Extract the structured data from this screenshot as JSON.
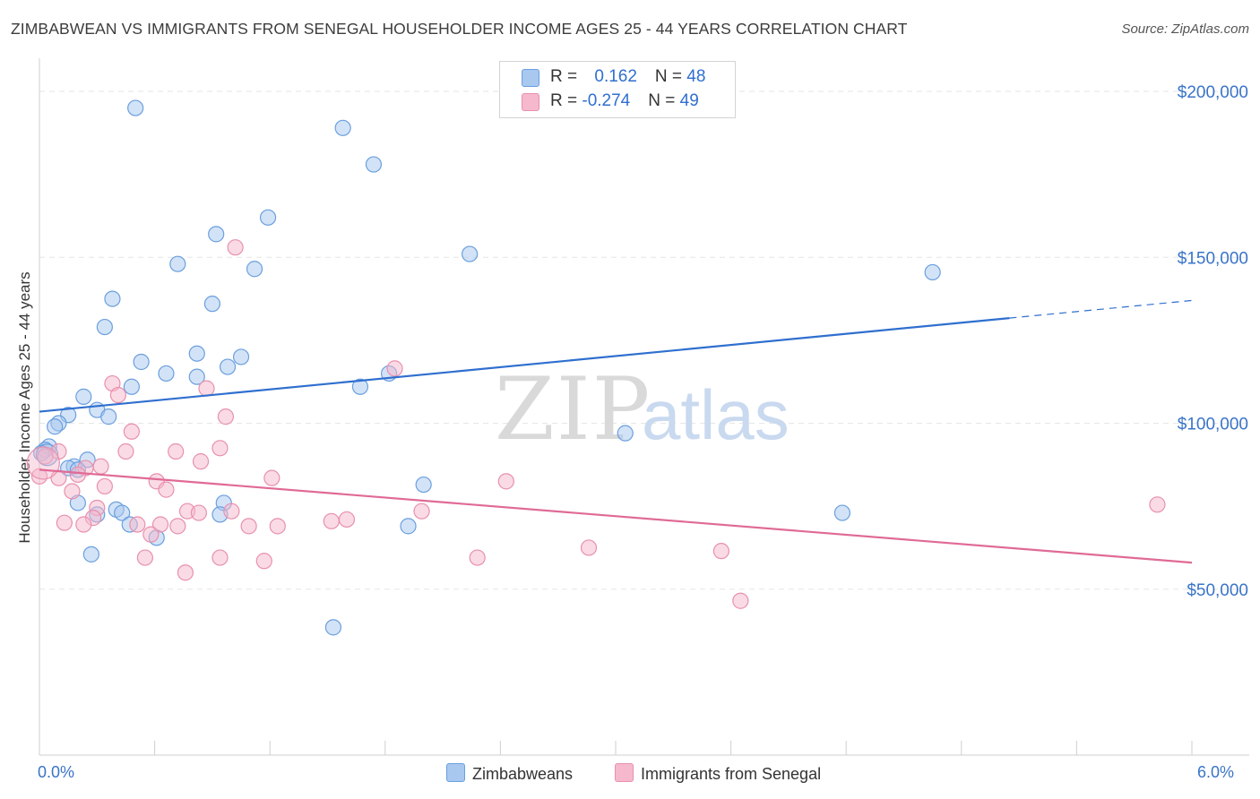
{
  "title": "ZIMBABWEAN VS IMMIGRANTS FROM SENEGAL HOUSEHOLDER INCOME AGES 25 - 44 YEARS CORRELATION CHART",
  "source": "Source: ZipAtlas.com",
  "watermark": {
    "zip": "ZIP",
    "atlas": "atlas"
  },
  "legend_top": [
    {
      "r_label": "R = ",
      "r_value": "0.162",
      "n_label": "N = ",
      "n_value": "48"
    },
    {
      "r_label": "R = ",
      "r_value": "-0.274",
      "n_label": "N = ",
      "n_value": "49"
    }
  ],
  "legend_bottom": [
    "Zimbabweans",
    "Immigrants from Senegal"
  ],
  "colors": {
    "blue_fill": "#a8c8f0",
    "blue_stroke": "#6a9fde",
    "blue_line": "#2f6fcf",
    "pink_fill": "#f5b8cc",
    "pink_stroke": "#e890ad",
    "pink_line": "#e06a96",
    "grid": "#e6e6e6",
    "tick_label": "#3a74c8"
  },
  "chart_data": {
    "type": "scatter",
    "xlabel": "",
    "ylabel": "Householder Income Ages 25 - 44 years",
    "xlim": [
      0,
      6
    ],
    "ylim": [
      0,
      210000
    ],
    "x_tick_labels": [
      "0.0%",
      "6.0%"
    ],
    "y_ticks": [
      50000,
      100000,
      150000,
      200000
    ],
    "y_tick_labels": [
      "$50,000",
      "$100,000",
      "$150,000",
      "$200,000"
    ],
    "grid": true,
    "legend_placement": "top-center",
    "series": [
      {
        "name": "Zimbabweans",
        "r": 0.162,
        "n": 48,
        "trend": {
          "x0": 0,
          "y0": 103500,
          "x1": 6,
          "y1": 137000,
          "solid_until": 5.05
        },
        "points": [
          [
            0.5,
            195000
          ],
          [
            1.58,
            189000
          ],
          [
            1.74,
            178000
          ],
          [
            1.19,
            162000
          ],
          [
            0.92,
            157000
          ],
          [
            2.24,
            151000
          ],
          [
            0.72,
            148000
          ],
          [
            1.12,
            146500
          ],
          [
            4.65,
            145500
          ],
          [
            0.38,
            137500
          ],
          [
            0.9,
            136000
          ],
          [
            0.34,
            129000
          ],
          [
            0.53,
            118500
          ],
          [
            0.82,
            121000
          ],
          [
            1.05,
            120000
          ],
          [
            0.66,
            115000
          ],
          [
            0.98,
            117000
          ],
          [
            0.82,
            114000
          ],
          [
            1.82,
            115000
          ],
          [
            1.67,
            111000
          ],
          [
            0.48,
            111000
          ],
          [
            0.23,
            108000
          ],
          [
            0.3,
            104000
          ],
          [
            0.36,
            102000
          ],
          [
            0.15,
            102500
          ],
          [
            0.1,
            100000
          ],
          [
            0.08,
            99000
          ],
          [
            3.05,
            97000
          ],
          [
            0.05,
            93000
          ],
          [
            0.03,
            92000
          ],
          [
            0.25,
            89000
          ],
          [
            0.18,
            87000
          ],
          [
            0.15,
            86500
          ],
          [
            0.2,
            86000
          ],
          [
            2.0,
            81500
          ],
          [
            0.2,
            76000
          ],
          [
            0.96,
            76000
          ],
          [
            0.4,
            74000
          ],
          [
            0.43,
            73000
          ],
          [
            0.3,
            72500
          ],
          [
            0.94,
            72500
          ],
          [
            4.18,
            73000
          ],
          [
            0.47,
            69500
          ],
          [
            1.92,
            69000
          ],
          [
            0.61,
            65500
          ],
          [
            0.27,
            60500
          ],
          [
            1.53,
            38500
          ],
          [
            0.01,
            91000
          ]
        ]
      },
      {
        "name": "Immigrants from Senegal",
        "r": -0.274,
        "n": 49,
        "trend": {
          "x0": 0,
          "y0": 86000,
          "x1": 6,
          "y1": 58000
        },
        "points": [
          [
            1.02,
            153000
          ],
          [
            1.85,
            116500
          ],
          [
            0.38,
            112000
          ],
          [
            0.87,
            110500
          ],
          [
            0.41,
            108500
          ],
          [
            0.48,
            97500
          ],
          [
            0.97,
            102000
          ],
          [
            0.94,
            92500
          ],
          [
            0.71,
            91500
          ],
          [
            0.45,
            91500
          ],
          [
            0.1,
            91500
          ],
          [
            0.03,
            90000
          ],
          [
            0.84,
            88500
          ],
          [
            0.24,
            86500
          ],
          [
            0.32,
            87000
          ],
          [
            0.2,
            84500
          ],
          [
            0.1,
            83500
          ],
          [
            2.43,
            82500
          ],
          [
            1.21,
            83500
          ],
          [
            0.61,
            82500
          ],
          [
            0.34,
            81000
          ],
          [
            0.66,
            80000
          ],
          [
            0.3,
            74500
          ],
          [
            1.0,
            73500
          ],
          [
            0.77,
            73500
          ],
          [
            1.99,
            73500
          ],
          [
            0.83,
            73000
          ],
          [
            0.28,
            71500
          ],
          [
            1.6,
            71000
          ],
          [
            1.52,
            70500
          ],
          [
            0.23,
            69500
          ],
          [
            0.63,
            69500
          ],
          [
            0.72,
            69000
          ],
          [
            0.51,
            69500
          ],
          [
            1.24,
            69000
          ],
          [
            1.09,
            69000
          ],
          [
            0.58,
            66500
          ],
          [
            5.82,
            75500
          ],
          [
            2.86,
            62500
          ],
          [
            3.55,
            61500
          ],
          [
            0.55,
            59500
          ],
          [
            0.94,
            59500
          ],
          [
            2.28,
            59500
          ],
          [
            1.17,
            58500
          ],
          [
            0.76,
            55000
          ],
          [
            3.65,
            46500
          ],
          [
            0.0,
            84000
          ],
          [
            0.17,
            79500
          ],
          [
            0.13,
            70000
          ]
        ]
      }
    ]
  }
}
